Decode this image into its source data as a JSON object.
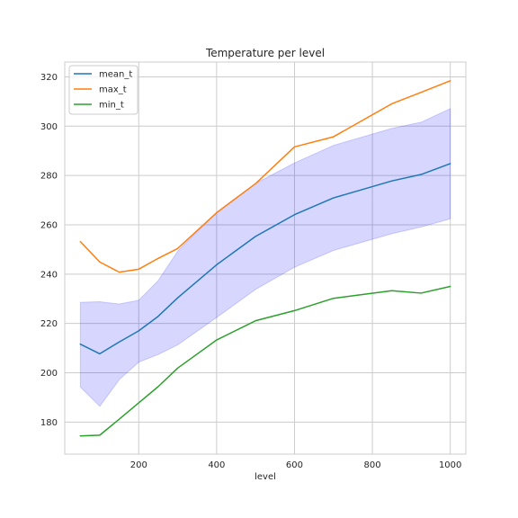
{
  "chart_data": {
    "type": "line",
    "title": "Temperature per level",
    "xlabel": "level",
    "ylabel": "",
    "xlim": [
      10,
      1040
    ],
    "ylim": [
      167,
      326
    ],
    "xticks": [
      200,
      400,
      600,
      800,
      1000
    ],
    "yticks": [
      180,
      200,
      220,
      240,
      260,
      280,
      300,
      320
    ],
    "grid": true,
    "legend_position": "top-left",
    "x": [
      50,
      100,
      150,
      200,
      250,
      300,
      400,
      500,
      600,
      700,
      850,
      925,
      1000
    ],
    "series": [
      {
        "name": "mean_t",
        "color": "#1f77b4",
        "values": [
          211.6,
          207.7,
          212.5,
          217.0,
          222.9,
          230.4,
          243.8,
          255.3,
          264.1,
          270.9,
          277.8,
          280.4,
          284.8
        ]
      },
      {
        "name": "max_t",
        "color": "#ff7f0e",
        "values": [
          253.2,
          244.9,
          240.8,
          242.0,
          246.4,
          250.4,
          264.9,
          276.7,
          291.6,
          295.7,
          309.1,
          313.7,
          318.4
        ]
      },
      {
        "name": "min_t",
        "color": "#2ca02c",
        "values": [
          174.4,
          174.7,
          181.2,
          187.8,
          194.4,
          201.9,
          213.3,
          221.1,
          225.2,
          230.2,
          233.3,
          232.3,
          235.0
        ]
      }
    ],
    "band": {
      "color": "#0000ff",
      "opacity": 0.16,
      "lower": [
        194.2,
        186.4,
        197.2,
        204.3,
        207.4,
        211.3,
        222.4,
        233.8,
        242.8,
        249.6,
        256.4,
        259.1,
        262.4
      ],
      "upper": [
        228.6,
        228.8,
        227.9,
        229.4,
        237.4,
        249.3,
        265.1,
        276.8,
        285.1,
        292.2,
        299.1,
        301.6,
        307.1
      ]
    }
  }
}
